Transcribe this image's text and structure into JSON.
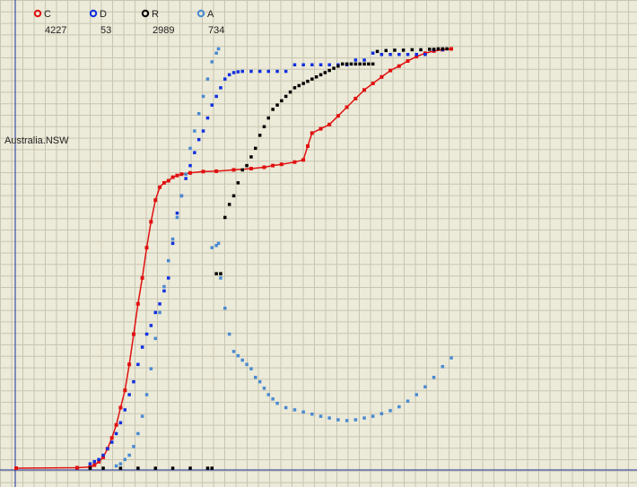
{
  "chart_data": {
    "type": "scatter",
    "region_label": "Australia.NSW",
    "grid": true,
    "x_domain": [
      0,
      100
    ],
    "y_domain": [
      0,
      100
    ],
    "legend": {
      "placement": "top-left",
      "items": [
        {
          "key": "C",
          "value": "4227",
          "color": "#e01010"
        },
        {
          "key": "D",
          "value": "53",
          "color": "#1030e0"
        },
        {
          "key": "R",
          "value": "2989",
          "color": "#000000"
        },
        {
          "key": "A",
          "value": "734",
          "color": "#4a8ad0"
        }
      ]
    },
    "series": [
      {
        "name": "C",
        "color": "#e01010",
        "style": "line-dots",
        "points": [
          [
            0,
            0
          ],
          [
            14,
            0.1
          ],
          [
            17,
            0.3
          ],
          [
            18,
            0.7
          ],
          [
            19,
            1.5
          ],
          [
            20,
            2.5
          ],
          [
            21,
            4.5
          ],
          [
            22,
            7
          ],
          [
            23,
            10
          ],
          [
            24,
            14
          ],
          [
            25,
            18
          ],
          [
            26,
            24
          ],
          [
            27,
            31
          ],
          [
            28,
            38
          ],
          [
            29,
            44
          ],
          [
            30,
            51
          ],
          [
            31,
            57
          ],
          [
            32,
            62
          ],
          [
            33,
            65
          ],
          [
            34,
            66
          ],
          [
            35,
            66.5
          ],
          [
            36,
            67.3
          ],
          [
            37,
            67.7
          ],
          [
            38,
            68
          ],
          [
            40,
            68.3
          ],
          [
            43,
            68.6
          ],
          [
            46,
            68.7
          ],
          [
            50,
            69
          ],
          [
            54,
            69.3
          ],
          [
            57,
            69.6
          ],
          [
            59,
            70
          ],
          [
            61,
            70.3
          ],
          [
            64,
            70.8
          ],
          [
            66,
            71.3
          ],
          [
            67,
            74.5
          ],
          [
            68,
            77.5
          ],
          [
            70,
            78.5
          ],
          [
            72,
            79.5
          ],
          [
            74,
            81.5
          ],
          [
            76,
            83.5
          ],
          [
            78,
            85.5
          ],
          [
            80,
            87.5
          ],
          [
            82,
            89
          ],
          [
            84,
            90.5
          ],
          [
            86,
            92
          ],
          [
            88,
            93
          ],
          [
            90,
            94.2
          ],
          [
            92,
            95.2
          ],
          [
            94,
            96
          ],
          [
            96,
            96.5
          ],
          [
            98,
            96.8
          ],
          [
            100,
            97
          ]
        ]
      },
      {
        "name": "D",
        "color": "#1030e0",
        "style": "dots",
        "points": [
          [
            17,
            1
          ],
          [
            18,
            1.5
          ],
          [
            19,
            2
          ],
          [
            20,
            3
          ],
          [
            21,
            4.5
          ],
          [
            22,
            6
          ],
          [
            23,
            8
          ],
          [
            24,
            10.5
          ],
          [
            25,
            13.5
          ],
          [
            26,
            17
          ],
          [
            27,
            20
          ],
          [
            28,
            24
          ],
          [
            29,
            28
          ],
          [
            30,
            31
          ],
          [
            31,
            33
          ],
          [
            32,
            36
          ],
          [
            33,
            38
          ],
          [
            34,
            41
          ],
          [
            35,
            44
          ],
          [
            36,
            52
          ],
          [
            37,
            59
          ],
          [
            38,
            63
          ],
          [
            39,
            67
          ],
          [
            40,
            70
          ],
          [
            41,
            73
          ],
          [
            42,
            76
          ],
          [
            43,
            78
          ],
          [
            44,
            81
          ],
          [
            45,
            84
          ],
          [
            46,
            86
          ],
          [
            47,
            88
          ],
          [
            48,
            90
          ],
          [
            49,
            91
          ],
          [
            50,
            91.5
          ],
          [
            51,
            91.7
          ],
          [
            52,
            91.8
          ],
          [
            54,
            91.8
          ],
          [
            56,
            91.8
          ],
          [
            58,
            91.8
          ],
          [
            60,
            91.8
          ],
          [
            62,
            91.8
          ],
          [
            64,
            93.3
          ],
          [
            66,
            93.3
          ],
          [
            68,
            93.3
          ],
          [
            70,
            93.3
          ],
          [
            72,
            93.3
          ],
          [
            74,
            93.3
          ],
          [
            76,
            93.3
          ],
          [
            78,
            94.4
          ],
          [
            80,
            94.4
          ],
          [
            82,
            96
          ],
          [
            84,
            95.7
          ],
          [
            86,
            95.7
          ],
          [
            88,
            95.7
          ],
          [
            90,
            95.7
          ],
          [
            92,
            95.7
          ],
          [
            94,
            95.7
          ],
          [
            96,
            96.8
          ],
          [
            98,
            96.8
          ]
        ]
      },
      {
        "name": "R",
        "color": "#000000",
        "style": "dots",
        "points": [
          [
            17,
            0
          ],
          [
            20,
            0
          ],
          [
            24,
            0
          ],
          [
            28,
            0
          ],
          [
            32,
            0
          ],
          [
            36,
            0
          ],
          [
            40,
            0
          ],
          [
            44,
            0
          ],
          [
            45,
            0
          ],
          [
            46,
            45
          ],
          [
            47,
            45
          ],
          [
            48,
            58
          ],
          [
            49,
            61
          ],
          [
            50,
            63
          ],
          [
            51,
            66
          ],
          [
            52,
            69
          ],
          [
            53,
            70
          ],
          [
            54,
            72
          ],
          [
            55,
            74
          ],
          [
            56,
            77
          ],
          [
            57,
            79
          ],
          [
            58,
            81
          ],
          [
            59,
            83
          ],
          [
            60,
            84
          ],
          [
            61,
            85
          ],
          [
            62,
            86
          ],
          [
            63,
            87
          ],
          [
            64,
            88
          ],
          [
            65,
            88.5
          ],
          [
            66,
            89
          ],
          [
            67,
            89.5
          ],
          [
            68,
            90
          ],
          [
            69,
            90.5
          ],
          [
            70,
            91
          ],
          [
            71,
            91.5
          ],
          [
            72,
            92
          ],
          [
            73,
            92.5
          ],
          [
            74,
            93
          ],
          [
            75,
            93.5
          ],
          [
            76,
            93.5
          ],
          [
            77,
            93.5
          ],
          [
            78,
            93.5
          ],
          [
            79,
            93.5
          ],
          [
            80,
            93.5
          ],
          [
            81,
            93.5
          ],
          [
            82,
            93.5
          ],
          [
            83,
            96.4
          ],
          [
            85,
            96.6
          ],
          [
            87,
            96.7
          ],
          [
            89,
            96.7
          ],
          [
            91,
            96.8
          ],
          [
            93,
            96.8
          ],
          [
            95,
            96.9
          ],
          [
            96,
            96.9
          ],
          [
            97,
            97
          ],
          [
            98,
            97
          ],
          [
            99,
            97
          ]
        ]
      },
      {
        "name": "A",
        "color": "#4a8ad0",
        "style": "dots",
        "points": [
          [
            23,
            0.5
          ],
          [
            24,
            1
          ],
          [
            25,
            2
          ],
          [
            26,
            3
          ],
          [
            27,
            5
          ],
          [
            28,
            8
          ],
          [
            29,
            12
          ],
          [
            30,
            17
          ],
          [
            31,
            23
          ],
          [
            32,
            30
          ],
          [
            33,
            36
          ],
          [
            34,
            42
          ],
          [
            35,
            48
          ],
          [
            36,
            53
          ],
          [
            37,
            58
          ],
          [
            38,
            63
          ],
          [
            39,
            68
          ],
          [
            40,
            74
          ],
          [
            41,
            78
          ],
          [
            42,
            82
          ],
          [
            43,
            86
          ],
          [
            44,
            90
          ],
          [
            45,
            94
          ],
          [
            46,
            96
          ],
          [
            46.5,
            97
          ],
          [
            45,
            51
          ],
          [
            46,
            51.5
          ],
          [
            46.5,
            52
          ],
          [
            47,
            44
          ],
          [
            48,
            37
          ],
          [
            49,
            31
          ],
          [
            50,
            27
          ],
          [
            51,
            26
          ],
          [
            52,
            25
          ],
          [
            53,
            24
          ],
          [
            54,
            23
          ],
          [
            55,
            21
          ],
          [
            56,
            20
          ],
          [
            57,
            18.5
          ],
          [
            58,
            17
          ],
          [
            59,
            16
          ],
          [
            60,
            15
          ],
          [
            62,
            14
          ],
          [
            64,
            13.5
          ],
          [
            66,
            13
          ],
          [
            68,
            12.5
          ],
          [
            70,
            12
          ],
          [
            72,
            11.6
          ],
          [
            74,
            11.2
          ],
          [
            76,
            11
          ],
          [
            78,
            11.2
          ],
          [
            80,
            11.6
          ],
          [
            82,
            12
          ],
          [
            84,
            12.6
          ],
          [
            86,
            13.3
          ],
          [
            88,
            14.2
          ],
          [
            90,
            15.5
          ],
          [
            92,
            17
          ],
          [
            94,
            18.8
          ],
          [
            96,
            21
          ],
          [
            98,
            23.5
          ],
          [
            100,
            25.5
          ]
        ]
      }
    ]
  }
}
